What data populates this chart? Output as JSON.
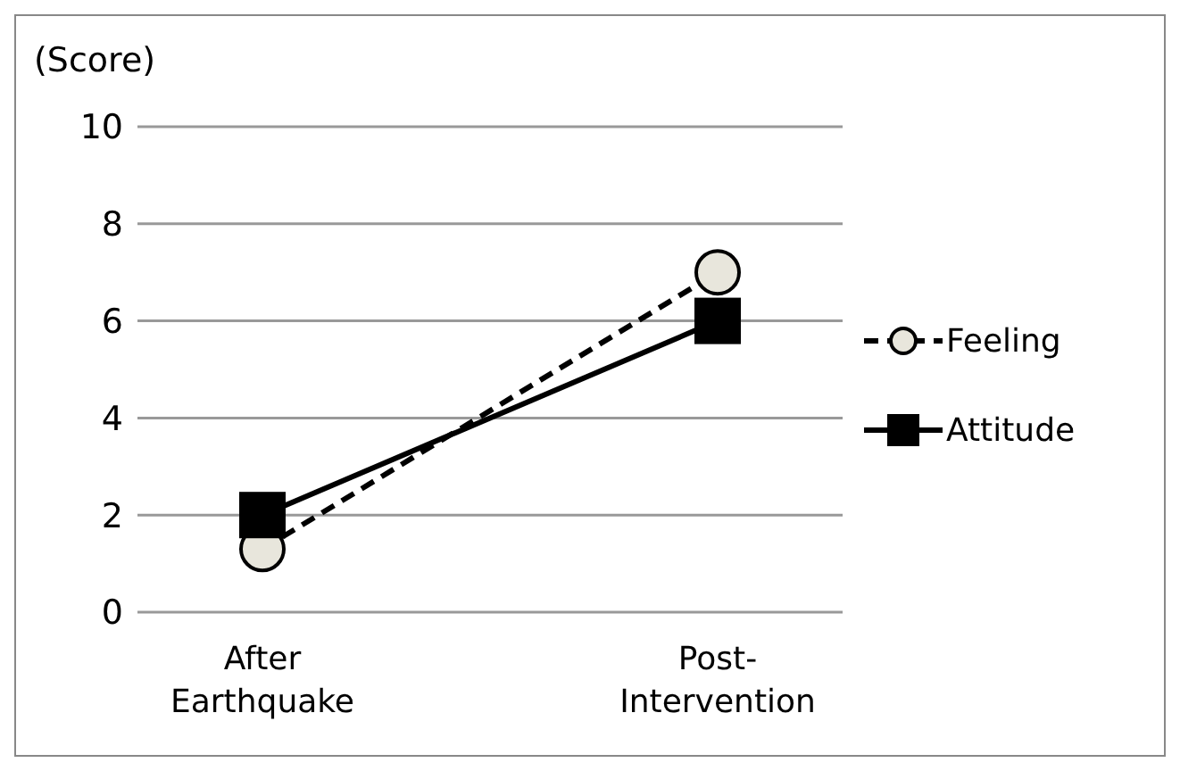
{
  "chart_data": {
    "type": "line",
    "ylabel": "(Score)",
    "categories": [
      "After\nEarthquake",
      "Post-\nIntervention"
    ],
    "series": [
      {
        "name": "Feeling",
        "color": "#e8e6dc",
        "values": [
          1.3,
          7.0
        ],
        "marker": "circle",
        "line_style": "dashed"
      },
      {
        "name": "Attitude",
        "color": "#000000",
        "values": [
          2.0,
          6.0
        ],
        "marker": "square",
        "line_style": "solid"
      }
    ],
    "ylim": [
      0,
      10
    ],
    "yticks": [
      0,
      2,
      4,
      6,
      8,
      10
    ],
    "grid": "y",
    "legend": "right"
  }
}
